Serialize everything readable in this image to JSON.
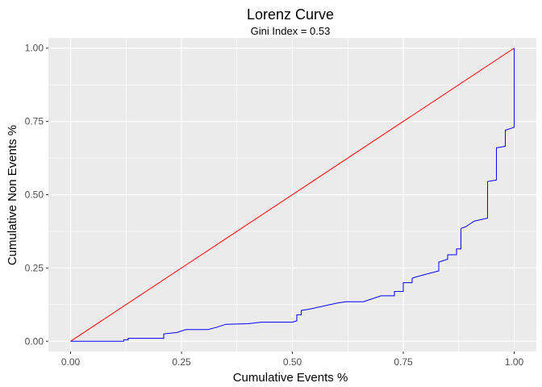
{
  "chart_data": {
    "type": "line",
    "title": "Lorenz Curve",
    "subtitle": "Gini Index = 0.53",
    "xlabel": "Cumulative Events %",
    "ylabel": "Cumulative Non Events %",
    "xlim": [
      -0.05,
      1.05
    ],
    "ylim": [
      -0.035,
      1.035
    ],
    "x_ticks": [
      "0.00",
      "0.25",
      "0.50",
      "0.75",
      "1.00"
    ],
    "y_ticks": [
      "0.00",
      "0.25",
      "0.50",
      "0.75",
      "1.00"
    ],
    "grid": true,
    "legend": "none",
    "series": [
      {
        "color": "#ff0000",
        "style": "line",
        "points": [
          [
            0,
            0
          ],
          [
            1,
            1
          ]
        ]
      },
      {
        "color": "#0000ff",
        "style": "step",
        "points": [
          [
            0.0,
            0.0
          ],
          [
            0.12,
            0.0
          ],
          [
            0.12,
            0.005
          ],
          [
            0.13,
            0.005
          ],
          [
            0.13,
            0.01
          ],
          [
            0.21,
            0.01
          ],
          [
            0.21,
            0.025
          ],
          [
            0.24,
            0.03
          ],
          [
            0.26,
            0.04
          ],
          [
            0.31,
            0.04
          ],
          [
            0.33,
            0.048
          ],
          [
            0.35,
            0.058
          ],
          [
            0.4,
            0.06
          ],
          [
            0.43,
            0.065
          ],
          [
            0.5,
            0.065
          ],
          [
            0.51,
            0.07
          ],
          [
            0.51,
            0.09
          ],
          [
            0.52,
            0.09
          ],
          [
            0.52,
            0.105
          ],
          [
            0.54,
            0.11
          ],
          [
            0.6,
            0.13
          ],
          [
            0.62,
            0.135
          ],
          [
            0.66,
            0.135
          ],
          [
            0.7,
            0.155
          ],
          [
            0.73,
            0.155
          ],
          [
            0.73,
            0.17
          ],
          [
            0.75,
            0.17
          ],
          [
            0.75,
            0.2
          ],
          [
            0.77,
            0.2
          ],
          [
            0.77,
            0.215
          ],
          [
            0.78,
            0.22
          ],
          [
            0.83,
            0.24
          ],
          [
            0.83,
            0.27
          ],
          [
            0.85,
            0.28
          ],
          [
            0.85,
            0.295
          ],
          [
            0.87,
            0.295
          ],
          [
            0.87,
            0.315
          ],
          [
            0.88,
            0.315
          ],
          [
            0.88,
            0.385
          ],
          [
            0.89,
            0.39
          ],
          [
            0.9,
            0.4
          ],
          [
            0.91,
            0.41
          ],
          [
            0.94,
            0.42
          ],
          [
            0.94,
            0.545
          ],
          [
            0.96,
            0.55
          ],
          [
            0.96,
            0.66
          ],
          [
            0.98,
            0.665
          ],
          [
            0.98,
            0.72
          ],
          [
            1.0,
            0.73
          ],
          [
            1.0,
            1.0
          ]
        ]
      }
    ]
  }
}
